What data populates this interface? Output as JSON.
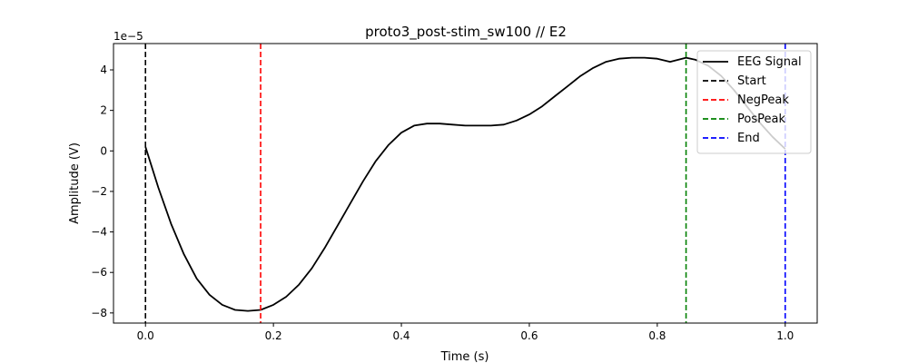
{
  "chart_data": {
    "type": "line",
    "title": "proto3_post-stim_sw100 // E2",
    "xlabel": "Time (s)",
    "ylabel": "Amplitude (V)",
    "y_offset_label": "1e−5",
    "xlim": [
      -0.05,
      1.05
    ],
    "ylim": [
      -8.5,
      5.3
    ],
    "xticks": [
      0.0,
      0.2,
      0.4,
      0.6,
      0.8,
      1.0
    ],
    "xtick_labels": [
      "0.0",
      "0.2",
      "0.4",
      "0.6",
      "0.8",
      "1.0"
    ],
    "yticks": [
      -8,
      -6,
      -4,
      -2,
      0,
      2,
      4
    ],
    "ytick_labels": [
      "−8",
      "−6",
      "−4",
      "−2",
      "0",
      "2",
      "4"
    ],
    "grid": false,
    "legend_position": "top-right",
    "series": [
      {
        "name": "EEG Signal",
        "color": "#000000",
        "style": "solid",
        "x": [
          0.0,
          0.02,
          0.04,
          0.06,
          0.08,
          0.1,
          0.12,
          0.14,
          0.16,
          0.18,
          0.2,
          0.22,
          0.24,
          0.26,
          0.28,
          0.3,
          0.32,
          0.34,
          0.36,
          0.38,
          0.4,
          0.42,
          0.44,
          0.46,
          0.48,
          0.5,
          0.52,
          0.54,
          0.56,
          0.58,
          0.6,
          0.62,
          0.64,
          0.66,
          0.68,
          0.7,
          0.72,
          0.74,
          0.76,
          0.78,
          0.8,
          0.82,
          0.845,
          0.86,
          0.88,
          0.9,
          0.92,
          0.94,
          0.96,
          0.98,
          1.0
        ],
        "y": [
          0.2,
          -1.8,
          -3.6,
          -5.1,
          -6.3,
          -7.1,
          -7.6,
          -7.85,
          -7.9,
          -7.85,
          -7.6,
          -7.2,
          -6.6,
          -5.8,
          -4.8,
          -3.7,
          -2.6,
          -1.5,
          -0.5,
          0.3,
          0.9,
          1.25,
          1.35,
          1.35,
          1.3,
          1.25,
          1.25,
          1.25,
          1.3,
          1.5,
          1.8,
          2.2,
          2.7,
          3.2,
          3.7,
          4.1,
          4.4,
          4.55,
          4.6,
          4.6,
          4.55,
          4.4,
          4.6,
          4.5,
          4.2,
          3.7,
          3.0,
          2.2,
          1.4,
          0.7,
          0.1
        ]
      }
    ],
    "vlines": [
      {
        "name": "Start",
        "x": 0.0,
        "color": "#000000",
        "style": "dashed"
      },
      {
        "name": "NegPeak",
        "x": 0.18,
        "color": "#ff0000",
        "style": "dashed"
      },
      {
        "name": "PosPeak",
        "x": 0.845,
        "color": "#008000",
        "style": "dashed"
      },
      {
        "name": "End",
        "x": 1.0,
        "color": "#0000ff",
        "style": "dashed"
      }
    ]
  }
}
